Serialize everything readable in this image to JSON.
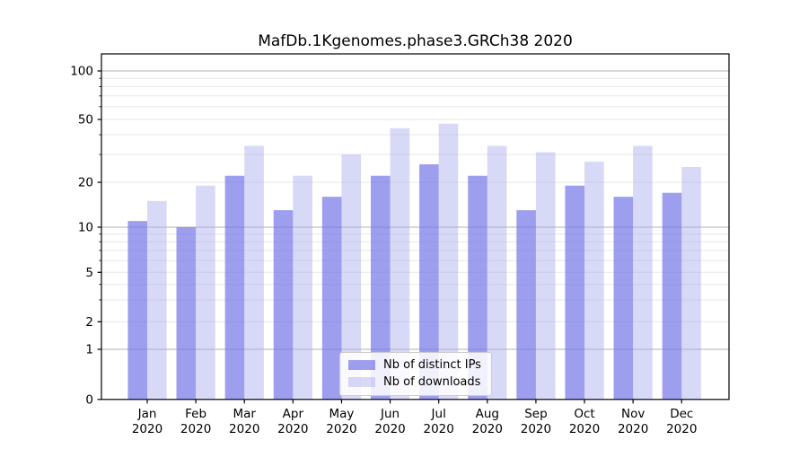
{
  "chart_data": {
    "type": "bar",
    "title": "MafDb.1Kgenomes.phase3.GRCh38 2020",
    "categories": [
      "Jan",
      "Feb",
      "Mar",
      "Apr",
      "May",
      "Jun",
      "Jul",
      "Aug",
      "Sep",
      "Oct",
      "Nov",
      "Dec"
    ],
    "category_year_line": "2020",
    "series": [
      {
        "name": "Nb of distinct IPs",
        "color": "#7979e8",
        "alpha": 0.72,
        "values": [
          11,
          10,
          22,
          13,
          16,
          22,
          26,
          22,
          13,
          19,
          16,
          17
        ]
      },
      {
        "name": "Nb of downloads",
        "color": "#a8a8ee",
        "alpha": 0.45,
        "values": [
          15,
          19,
          34,
          22,
          30,
          44,
          47,
          34,
          31,
          27,
          34,
          25
        ]
      }
    ],
    "yscale": "symlog",
    "ylim": [
      0,
      130
    ],
    "y_ticks": [
      0,
      1,
      2,
      5,
      10,
      20,
      50,
      100
    ],
    "y_minor_ticks": [
      2,
      3,
      4,
      5,
      6,
      7,
      8,
      9,
      20,
      30,
      40,
      50,
      60,
      70,
      80,
      90
    ],
    "grid": "both",
    "legend_position": "lower center inside",
    "colors": {
      "major_grid": "#b0b0b0",
      "minor_grid": "#e7e7e7",
      "spine": "#000000",
      "text": "#000000",
      "legend_border": "#cccccc"
    }
  }
}
